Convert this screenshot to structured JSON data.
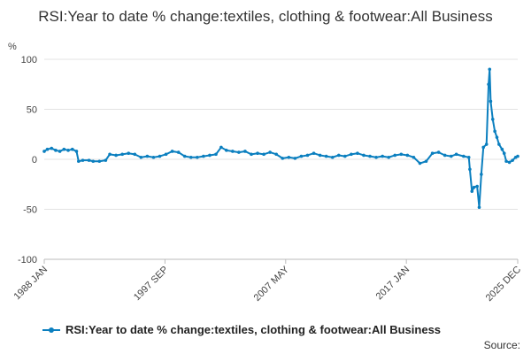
{
  "chart_data": {
    "type": "line",
    "title": "RSI:Year to date % change:textiles, clothing & footwear:All Business",
    "ylabel": "%",
    "ylim": [
      -100,
      100
    ],
    "yticks": [
      -100,
      -50,
      0,
      50,
      100
    ],
    "xlim": [
      "1988 JAN",
      "2025 DEC"
    ],
    "xticks": [
      "1988 JAN",
      "1997 SEP",
      "2007 MAY",
      "2017 JAN",
      "2025 DEC"
    ],
    "grid": true,
    "legend_position": "bottom-left",
    "series_color": "#0b7fbf",
    "series": [
      {
        "name": "RSI:Year to date % change:textiles, clothing & footwear:All Business",
        "points": [
          [
            "1988-01",
            8
          ],
          [
            "1988-04",
            10
          ],
          [
            "1988-08",
            11
          ],
          [
            "1988-12",
            9
          ],
          [
            "1989-04",
            8
          ],
          [
            "1989-08",
            10
          ],
          [
            "1989-12",
            9
          ],
          [
            "1990-04",
            10
          ],
          [
            "1990-08",
            8
          ],
          [
            "1990-10",
            -2
          ],
          [
            "1991-02",
            -1
          ],
          [
            "1991-08",
            -1
          ],
          [
            "1991-12",
            -2
          ],
          [
            "1992-06",
            -2
          ],
          [
            "1992-12",
            -1
          ],
          [
            "1993-04",
            5
          ],
          [
            "1993-10",
            4
          ],
          [
            "1994-04",
            5
          ],
          [
            "1994-10",
            6
          ],
          [
            "1995-04",
            5
          ],
          [
            "1995-10",
            2
          ],
          [
            "1996-04",
            3
          ],
          [
            "1996-10",
            2
          ],
          [
            "1997-04",
            3
          ],
          [
            "1997-10",
            5
          ],
          [
            "1998-04",
            8
          ],
          [
            "1998-10",
            7
          ],
          [
            "1999-04",
            3
          ],
          [
            "1999-10",
            2
          ],
          [
            "2000-04",
            2
          ],
          [
            "2000-10",
            3
          ],
          [
            "2001-04",
            4
          ],
          [
            "2001-10",
            5
          ],
          [
            "2002-03",
            12
          ],
          [
            "2002-08",
            9
          ],
          [
            "2003-02",
            8
          ],
          [
            "2003-08",
            7
          ],
          [
            "2004-02",
            8
          ],
          [
            "2004-08",
            5
          ],
          [
            "2005-02",
            6
          ],
          [
            "2005-08",
            5
          ],
          [
            "2006-02",
            7
          ],
          [
            "2006-08",
            5
          ],
          [
            "2007-02",
            1
          ],
          [
            "2007-08",
            2
          ],
          [
            "2008-02",
            1
          ],
          [
            "2008-08",
            3
          ],
          [
            "2009-02",
            4
          ],
          [
            "2009-08",
            6
          ],
          [
            "2010-02",
            4
          ],
          [
            "2010-08",
            3
          ],
          [
            "2011-02",
            2
          ],
          [
            "2011-08",
            4
          ],
          [
            "2012-02",
            3
          ],
          [
            "2012-08",
            5
          ],
          [
            "2013-02",
            6
          ],
          [
            "2013-08",
            4
          ],
          [
            "2014-02",
            3
          ],
          [
            "2014-08",
            2
          ],
          [
            "2015-02",
            3
          ],
          [
            "2015-08",
            2
          ],
          [
            "2016-02",
            4
          ],
          [
            "2016-08",
            5
          ],
          [
            "2017-02",
            4
          ],
          [
            "2017-08",
            2
          ],
          [
            "2018-02",
            -4
          ],
          [
            "2018-08",
            -2
          ],
          [
            "2019-02",
            6
          ],
          [
            "2019-08",
            7
          ],
          [
            "2020-02",
            4
          ],
          [
            "2020-08",
            3
          ],
          [
            "2021-01",
            5
          ],
          [
            "2021-08",
            3
          ],
          [
            "2022-01",
            2
          ],
          [
            "2022-02",
            -10
          ],
          [
            "2022-04",
            -32
          ],
          [
            "2022-06",
            -28
          ],
          [
            "2022-09",
            -27
          ],
          [
            "2022-11",
            -48
          ],
          [
            "2023-01",
            -15
          ],
          [
            "2023-03",
            12
          ],
          [
            "2023-06",
            15
          ],
          [
            "2023-08",
            75
          ],
          [
            "2023-09",
            90
          ],
          [
            "2023-10",
            58
          ],
          [
            "2023-12",
            40
          ],
          [
            "2024-02",
            28
          ],
          [
            "2024-04",
            22
          ],
          [
            "2024-06",
            15
          ],
          [
            "2024-09",
            10
          ],
          [
            "2024-11",
            6
          ],
          [
            "2025-01",
            -2
          ],
          [
            "2025-04",
            -3
          ],
          [
            "2025-07",
            -1
          ],
          [
            "2025-10",
            2
          ],
          [
            "2025-12",
            3
          ]
        ]
      }
    ]
  },
  "legend": {
    "label": "RSI:Year to date % change:textiles, clothing & footwear:All Business"
  },
  "source": {
    "label": "Source:"
  }
}
